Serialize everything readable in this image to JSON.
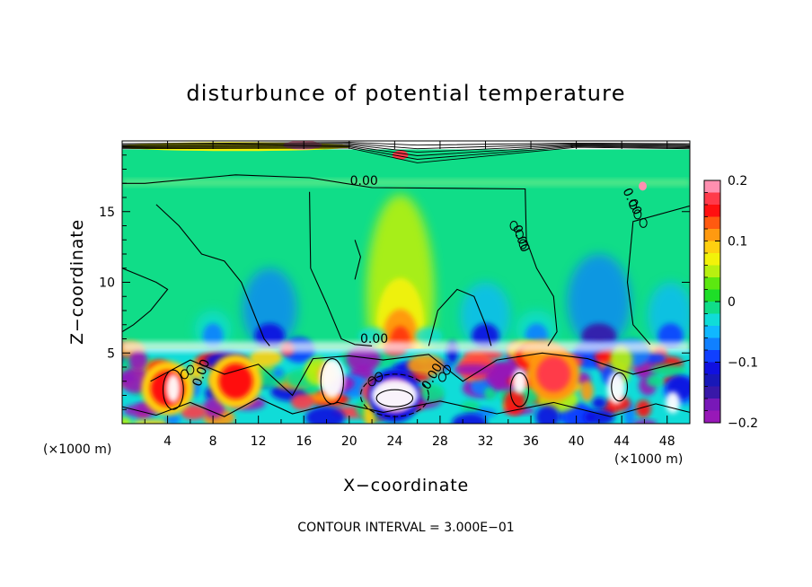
{
  "chart_data": {
    "type": "heatmap",
    "title": "disturbunce of potential temperature",
    "xlabel": "X−coordinate",
    "ylabel": "Z−coordinate",
    "x_unit_label": "(×1000 m)",
    "x_unit_label_right": "(×1000 m)",
    "footer": "CONTOUR INTERVAL = 3.000E−01",
    "xlim": [
      0,
      50
    ],
    "ylim": [
      0,
      20
    ],
    "x_ticks": [
      "4",
      "8",
      "12",
      "16",
      "20",
      "24",
      "28",
      "32",
      "36",
      "40",
      "44",
      "48"
    ],
    "x_tick_values": [
      4,
      8,
      12,
      16,
      20,
      24,
      28,
      32,
      36,
      40,
      44,
      48
    ],
    "y_ticks": [
      "5",
      "10",
      "15"
    ],
    "y_tick_values": [
      5,
      10,
      15
    ],
    "colorbar": {
      "range": [
        -0.2,
        0.2
      ],
      "tick_labels": [
        "0.2",
        "0.1",
        "0",
        "−0.1",
        "−0.2"
      ],
      "tick_values": [
        0.2,
        0.1,
        0,
        -0.1,
        -0.2
      ],
      "colors": [
        "#ff8fb0",
        "#ff3a4a",
        "#ff1010",
        "#ff5a10",
        "#ff9a10",
        "#ffd010",
        "#f2f20a",
        "#b8f010",
        "#5ce810",
        "#1ede28",
        "#10dd88",
        "#10dcd8",
        "#10b8ff",
        "#1080ff",
        "#1040ff",
        "#1010e0",
        "#1818b8",
        "#3818a8",
        "#7818b8",
        "#9818b8"
      ]
    },
    "contour_labels": [
      "0.00",
      "0.00",
      "0.00",
      "0.00",
      "0.00",
      "0.00"
    ],
    "features": {
      "background_value": 0,
      "boundary_layer_top_z": 5.3,
      "positive_plume": {
        "x": 24.5,
        "z": 6,
        "peak": 0.12
      },
      "negative_columns": [
        {
          "x": 13,
          "z": 7
        },
        {
          "x": 32,
          "z": 7
        },
        {
          "x": 42,
          "z": 8
        },
        {
          "x": 48,
          "z": 7
        }
      ],
      "boundary_layer_cells": [
        {
          "x": 4,
          "z": 2.5,
          "value": 0.15
        },
        {
          "x": 10,
          "z": 3,
          "value": 0.15
        },
        {
          "x": 38,
          "z": 3.5,
          "value": 0.18
        },
        {
          "x": 24,
          "z": 2,
          "value": -0.2
        }
      ]
    }
  }
}
